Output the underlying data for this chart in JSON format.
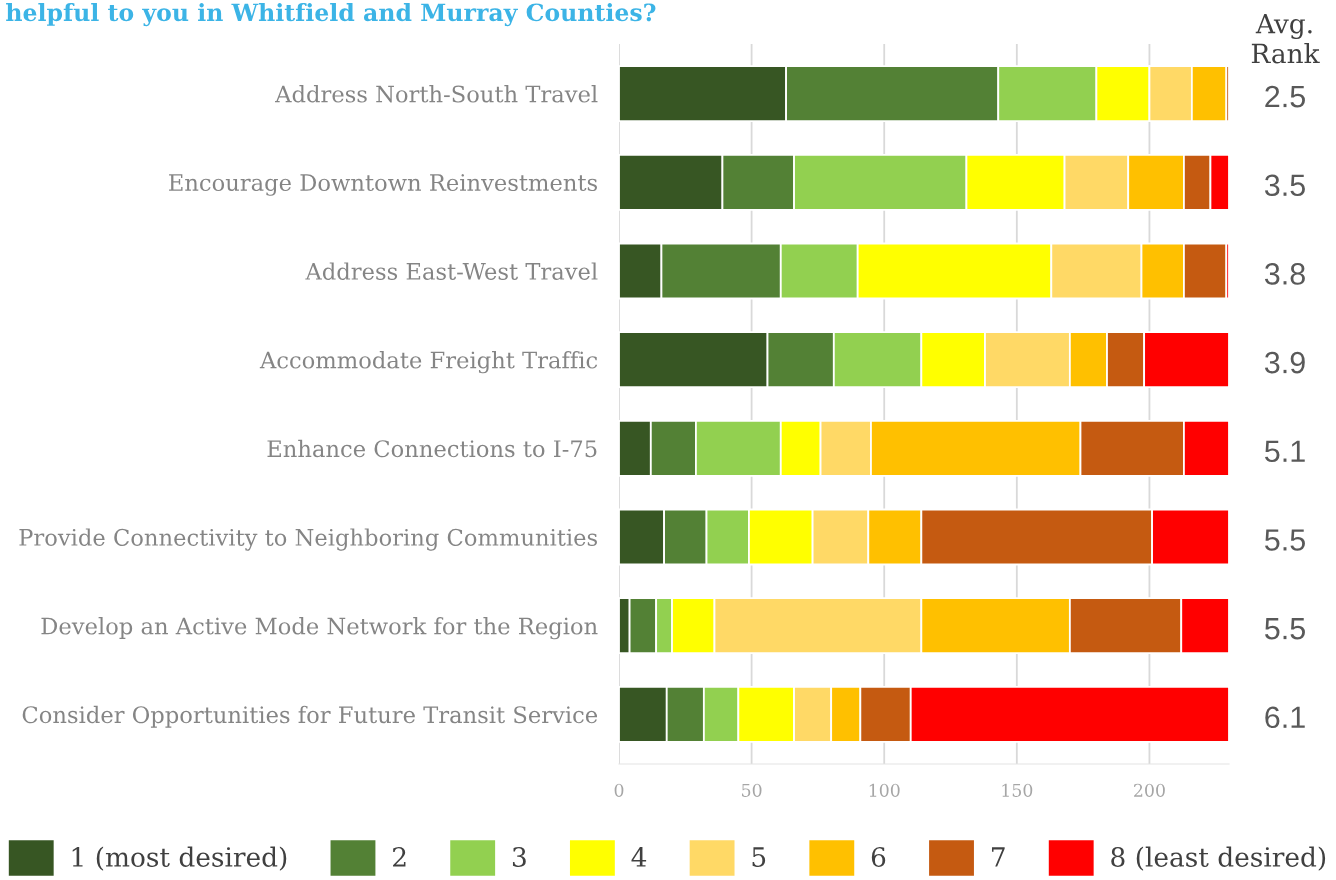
{
  "chart_data": {
    "type": "bar",
    "orientation": "horizontal",
    "stacked": true,
    "title": "helpful to you in Whitfield and Murray Counties?",
    "categories": [
      "Address North-South Travel",
      "Encourage Downtown Reinvestments",
      "Address East-West Travel",
      "Accommodate Freight Traffic",
      "Enhance Connections to I-75",
      "Provide Connectivity to Neighboring Communities",
      "Develop an Active Mode Network for the Region",
      "Consider Opportunities for Future Transit Service"
    ],
    "series": [
      {
        "name": "1 (most desired)",
        "color": "#375623",
        "values": [
          63,
          39,
          16,
          56,
          12,
          17,
          4,
          18
        ]
      },
      {
        "name": "2",
        "color": "#538135",
        "values": [
          80,
          27,
          45,
          25,
          17,
          16,
          10,
          14
        ]
      },
      {
        "name": "3",
        "color": "#92d050",
        "values": [
          37,
          65,
          29,
          33,
          32,
          16,
          6,
          13
        ]
      },
      {
        "name": "4",
        "color": "#ffff00",
        "values": [
          20,
          37,
          73,
          24,
          15,
          24,
          16,
          21
        ]
      },
      {
        "name": "5",
        "color": "#ffd966",
        "values": [
          16,
          24,
          34,
          32,
          19,
          21,
          78,
          14
        ]
      },
      {
        "name": "6",
        "color": "#ffc000",
        "values": [
          13,
          21,
          16,
          14,
          79,
          20,
          56,
          11
        ]
      },
      {
        "name": "7",
        "color": "#c55a11",
        "values": [
          1,
          10,
          16,
          14,
          39,
          87,
          42,
          19
        ]
      },
      {
        "name": "8 (least desired)",
        "color": "#ff0000",
        "values": [
          0,
          7,
          1,
          32,
          17,
          29,
          18,
          120
        ]
      }
    ],
    "xlim": [
      0,
      230
    ],
    "xticks": [
      0,
      50,
      100,
      150,
      200
    ],
    "grid": "x",
    "legend": "bottom",
    "annotations": [
      "Avg.\nRank",
      "2.5",
      "3.5",
      "3.8",
      "3.9",
      "5.1",
      "5.5",
      "5.5",
      "6.1"
    ]
  }
}
